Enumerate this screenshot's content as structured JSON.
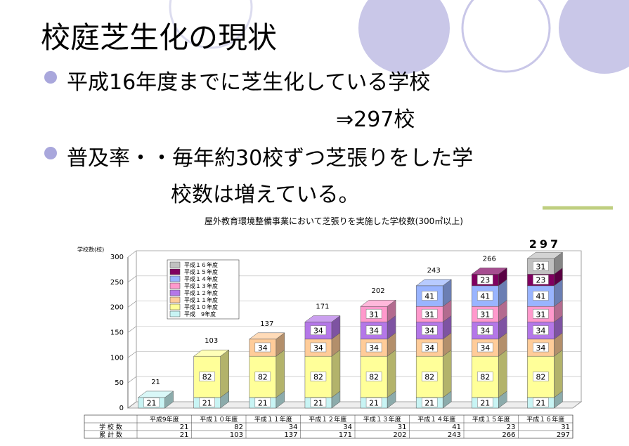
{
  "slide": {
    "title": "校庭芝生化の現状",
    "bullets": [
      {
        "text": "平成16年度までに芝生化している学校",
        "sub": "⇒297校"
      },
      {
        "text": "普及率・・毎年約30校ずつ芝張りをした学",
        "sub": "校数は増えている。"
      }
    ]
  },
  "chart_data": {
    "type": "stacked-bar-3d",
    "title": "屋外教育環境整備事業において芝張りを実施した学校数(300㎡以上)",
    "y_label": "学校数(校)",
    "categories": [
      "平成9年度",
      "平成１０年度",
      "平成１１年度",
      "平成１２年度",
      "平成１３年度",
      "平成１４年度",
      "平成１５年度",
      "平成１６年度"
    ],
    "ylim": [
      0,
      300
    ],
    "yticks": [
      0,
      50,
      100,
      150,
      200,
      250,
      300
    ],
    "series": [
      {
        "name": "平成　9年度",
        "color": "#c8f4f4",
        "values": [
          21,
          21,
          21,
          21,
          21,
          21,
          21,
          21
        ]
      },
      {
        "name": "平成１０年度",
        "color": "#ffff99",
        "values": [
          null,
          82,
          82,
          82,
          82,
          82,
          82,
          82
        ]
      },
      {
        "name": "平成１１年度",
        "color": "#ffcc99",
        "values": [
          null,
          null,
          34,
          34,
          34,
          34,
          34,
          34
        ]
      },
      {
        "name": "平成１２年度",
        "color": "#b477e8",
        "values": [
          null,
          null,
          null,
          34,
          34,
          34,
          34,
          34
        ]
      },
      {
        "name": "平成１３年度",
        "color": "#ff99cc",
        "values": [
          null,
          null,
          null,
          null,
          31,
          31,
          31,
          31
        ]
      },
      {
        "name": "平成１４年度",
        "color": "#99b4ff",
        "values": [
          null,
          null,
          null,
          null,
          null,
          41,
          41,
          41
        ]
      },
      {
        "name": "平成１５年度",
        "color": "#800060",
        "values": [
          null,
          null,
          null,
          null,
          null,
          null,
          23,
          23
        ]
      },
      {
        "name": "平成１６年度",
        "color": "#c0c0c0",
        "values": [
          null,
          null,
          null,
          null,
          null,
          null,
          null,
          31
        ]
      }
    ],
    "table": {
      "row_labels": [
        "学 校 数",
        "累 計 数"
      ],
      "annual": [
        21,
        82,
        34,
        34,
        31,
        41,
        23,
        31
      ],
      "cumulative": [
        21,
        103,
        137,
        171,
        202,
        243,
        266,
        297
      ]
    }
  }
}
